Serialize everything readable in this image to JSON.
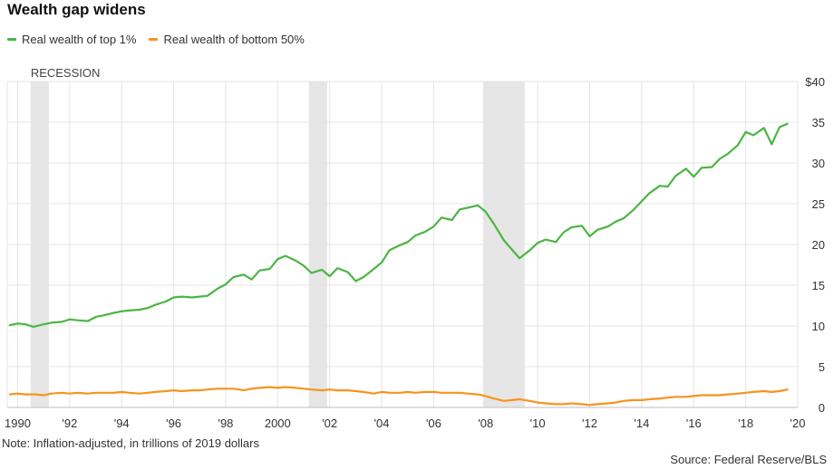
{
  "title": "Wealth gap widens",
  "legend": [
    {
      "label": "Real wealth of top 1%",
      "color": "#4bb543"
    },
    {
      "label": "Real wealth of bottom 50%",
      "color": "#f7931e"
    }
  ],
  "recession_label": "RECESSION",
  "note": "Note: Inflation-adjusted, in trillions of 2019 dollars",
  "source": "Source: Federal Reserve/BLS",
  "chart_data": {
    "type": "line",
    "xlim": [
      1989.6,
      2020
    ],
    "ylim": [
      0,
      40
    ],
    "y_ticks": [
      {
        "value": 0,
        "label": "0"
      },
      {
        "value": 5,
        "label": "5"
      },
      {
        "value": 10,
        "label": "10"
      },
      {
        "value": 15,
        "label": "15"
      },
      {
        "value": 20,
        "label": "20"
      },
      {
        "value": 25,
        "label": "25"
      },
      {
        "value": 30,
        "label": "30"
      },
      {
        "value": 35,
        "label": "35"
      },
      {
        "value": 40,
        "label": "$40"
      }
    ],
    "x_ticks": [
      {
        "value": 1990,
        "label": "1990"
      },
      {
        "value": 1992,
        "label": "'92"
      },
      {
        "value": 1994,
        "label": "'94"
      },
      {
        "value": 1996,
        "label": "'96"
      },
      {
        "value": 1998,
        "label": "'98"
      },
      {
        "value": 2000,
        "label": "2000"
      },
      {
        "value": 2002,
        "label": "'02"
      },
      {
        "value": 2004,
        "label": "'04"
      },
      {
        "value": 2006,
        "label": "'06"
      },
      {
        "value": 2008,
        "label": "'08"
      },
      {
        "value": 2010,
        "label": "'10"
      },
      {
        "value": 2012,
        "label": "'12"
      },
      {
        "value": 2014,
        "label": "'14"
      },
      {
        "value": 2016,
        "label": "'16"
      },
      {
        "value": 2018,
        "label": "'18"
      },
      {
        "value": 2020,
        "label": "'20"
      }
    ],
    "recessions": [
      [
        1990.5,
        1991.2
      ],
      [
        2001.2,
        2001.9
      ],
      [
        2007.9,
        2009.5
      ]
    ],
    "grid": true,
    "series": [
      {
        "name": "Real wealth of top 1%",
        "color": "#4bb543",
        "points": [
          [
            1989.7,
            10.1
          ],
          [
            1990.0,
            10.3
          ],
          [
            1990.3,
            10.2
          ],
          [
            1990.6,
            9.9
          ],
          [
            1991.0,
            10.2
          ],
          [
            1991.3,
            10.4
          ],
          [
            1991.7,
            10.5
          ],
          [
            1992.0,
            10.8
          ],
          [
            1992.3,
            10.7
          ],
          [
            1992.7,
            10.6
          ],
          [
            1993.0,
            11.1
          ],
          [
            1993.3,
            11.3
          ],
          [
            1993.7,
            11.6
          ],
          [
            1994.0,
            11.8
          ],
          [
            1994.3,
            11.9
          ],
          [
            1994.7,
            12.0
          ],
          [
            1995.0,
            12.2
          ],
          [
            1995.3,
            12.6
          ],
          [
            1995.7,
            13.0
          ],
          [
            1996.0,
            13.5
          ],
          [
            1996.3,
            13.6
          ],
          [
            1996.7,
            13.5
          ],
          [
            1997.0,
            13.6
          ],
          [
            1997.3,
            13.7
          ],
          [
            1997.7,
            14.6
          ],
          [
            1998.0,
            15.1
          ],
          [
            1998.3,
            16.0
          ],
          [
            1998.7,
            16.3
          ],
          [
            1999.0,
            15.7
          ],
          [
            1999.3,
            16.8
          ],
          [
            1999.7,
            17.0
          ],
          [
            2000.0,
            18.2
          ],
          [
            2000.3,
            18.6
          ],
          [
            2000.7,
            18.0
          ],
          [
            2001.0,
            17.4
          ],
          [
            2001.3,
            16.5
          ],
          [
            2001.7,
            16.9
          ],
          [
            2002.0,
            16.1
          ],
          [
            2002.3,
            17.1
          ],
          [
            2002.7,
            16.6
          ],
          [
            2003.0,
            15.5
          ],
          [
            2003.3,
            16.0
          ],
          [
            2003.7,
            17.0
          ],
          [
            2004.0,
            17.8
          ],
          [
            2004.3,
            19.3
          ],
          [
            2004.7,
            19.9
          ],
          [
            2005.0,
            20.3
          ],
          [
            2005.3,
            21.1
          ],
          [
            2005.7,
            21.6
          ],
          [
            2006.0,
            22.2
          ],
          [
            2006.3,
            23.3
          ],
          [
            2006.7,
            23.0
          ],
          [
            2007.0,
            24.3
          ],
          [
            2007.3,
            24.5
          ],
          [
            2007.7,
            24.8
          ],
          [
            2008.0,
            24.0
          ],
          [
            2008.3,
            22.6
          ],
          [
            2008.7,
            20.5
          ],
          [
            2009.0,
            19.4
          ],
          [
            2009.3,
            18.3
          ],
          [
            2009.7,
            19.3
          ],
          [
            2010.0,
            20.2
          ],
          [
            2010.3,
            20.6
          ],
          [
            2010.7,
            20.3
          ],
          [
            2011.0,
            21.5
          ],
          [
            2011.3,
            22.1
          ],
          [
            2011.7,
            22.3
          ],
          [
            2012.0,
            21.0
          ],
          [
            2012.3,
            21.8
          ],
          [
            2012.7,
            22.2
          ],
          [
            2013.0,
            22.8
          ],
          [
            2013.3,
            23.2
          ],
          [
            2013.7,
            24.3
          ],
          [
            2014.0,
            25.3
          ],
          [
            2014.3,
            26.3
          ],
          [
            2014.7,
            27.2
          ],
          [
            2015.0,
            27.1
          ],
          [
            2015.3,
            28.4
          ],
          [
            2015.7,
            29.3
          ],
          [
            2016.0,
            28.3
          ],
          [
            2016.3,
            29.4
          ],
          [
            2016.7,
            29.5
          ],
          [
            2017.0,
            30.5
          ],
          [
            2017.3,
            31.1
          ],
          [
            2017.7,
            32.2
          ],
          [
            2018.0,
            33.8
          ],
          [
            2018.3,
            33.4
          ],
          [
            2018.7,
            34.3
          ],
          [
            2019.0,
            32.3
          ],
          [
            2019.3,
            34.4
          ],
          [
            2019.6,
            34.8
          ]
        ]
      },
      {
        "name": "Real wealth of bottom 50%",
        "color": "#f7931e",
        "points": [
          [
            1989.7,
            1.6
          ],
          [
            1990.0,
            1.7
          ],
          [
            1990.3,
            1.6
          ],
          [
            1990.7,
            1.6
          ],
          [
            1991.0,
            1.5
          ],
          [
            1991.3,
            1.7
          ],
          [
            1991.7,
            1.8
          ],
          [
            1992.0,
            1.7
          ],
          [
            1992.3,
            1.8
          ],
          [
            1992.7,
            1.7
          ],
          [
            1993.0,
            1.8
          ],
          [
            1993.3,
            1.8
          ],
          [
            1993.7,
            1.8
          ],
          [
            1994.0,
            1.9
          ],
          [
            1994.3,
            1.8
          ],
          [
            1994.7,
            1.7
          ],
          [
            1995.0,
            1.8
          ],
          [
            1995.3,
            1.9
          ],
          [
            1995.7,
            2.0
          ],
          [
            1996.0,
            2.1
          ],
          [
            1996.3,
            2.0
          ],
          [
            1996.7,
            2.1
          ],
          [
            1997.0,
            2.1
          ],
          [
            1997.3,
            2.2
          ],
          [
            1997.7,
            2.3
          ],
          [
            1998.0,
            2.3
          ],
          [
            1998.3,
            2.3
          ],
          [
            1998.7,
            2.1
          ],
          [
            1999.0,
            2.3
          ],
          [
            1999.3,
            2.4
          ],
          [
            1999.7,
            2.5
          ],
          [
            2000.0,
            2.4
          ],
          [
            2000.3,
            2.5
          ],
          [
            2000.7,
            2.4
          ],
          [
            2001.0,
            2.3
          ],
          [
            2001.3,
            2.2
          ],
          [
            2001.7,
            2.1
          ],
          [
            2002.0,
            2.2
          ],
          [
            2002.3,
            2.1
          ],
          [
            2002.7,
            2.1
          ],
          [
            2003.0,
            2.0
          ],
          [
            2003.3,
            1.9
          ],
          [
            2003.7,
            1.7
          ],
          [
            2004.0,
            1.9
          ],
          [
            2004.3,
            1.8
          ],
          [
            2004.7,
            1.8
          ],
          [
            2005.0,
            1.9
          ],
          [
            2005.3,
            1.8
          ],
          [
            2005.7,
            1.9
          ],
          [
            2006.0,
            1.9
          ],
          [
            2006.3,
            1.8
          ],
          [
            2006.7,
            1.8
          ],
          [
            2007.0,
            1.8
          ],
          [
            2007.3,
            1.7
          ],
          [
            2007.7,
            1.6
          ],
          [
            2008.0,
            1.4
          ],
          [
            2008.3,
            1.1
          ],
          [
            2008.7,
            0.8
          ],
          [
            2009.0,
            0.9
          ],
          [
            2009.3,
            1.0
          ],
          [
            2009.7,
            0.8
          ],
          [
            2010.0,
            0.6
          ],
          [
            2010.3,
            0.5
          ],
          [
            2010.7,
            0.4
          ],
          [
            2011.0,
            0.4
          ],
          [
            2011.3,
            0.5
          ],
          [
            2011.7,
            0.4
          ],
          [
            2012.0,
            0.3
          ],
          [
            2012.3,
            0.4
          ],
          [
            2012.7,
            0.5
          ],
          [
            2013.0,
            0.6
          ],
          [
            2013.3,
            0.8
          ],
          [
            2013.7,
            0.9
          ],
          [
            2014.0,
            0.9
          ],
          [
            2014.3,
            1.0
          ],
          [
            2014.7,
            1.1
          ],
          [
            2015.0,
            1.2
          ],
          [
            2015.3,
            1.3
          ],
          [
            2015.7,
            1.3
          ],
          [
            2016.0,
            1.4
          ],
          [
            2016.3,
            1.5
          ],
          [
            2016.7,
            1.5
          ],
          [
            2017.0,
            1.5
          ],
          [
            2017.3,
            1.6
          ],
          [
            2017.7,
            1.7
          ],
          [
            2018.0,
            1.8
          ],
          [
            2018.3,
            1.9
          ],
          [
            2018.7,
            2.0
          ],
          [
            2019.0,
            1.9
          ],
          [
            2019.3,
            2.0
          ],
          [
            2019.6,
            2.2
          ]
        ]
      }
    ]
  }
}
